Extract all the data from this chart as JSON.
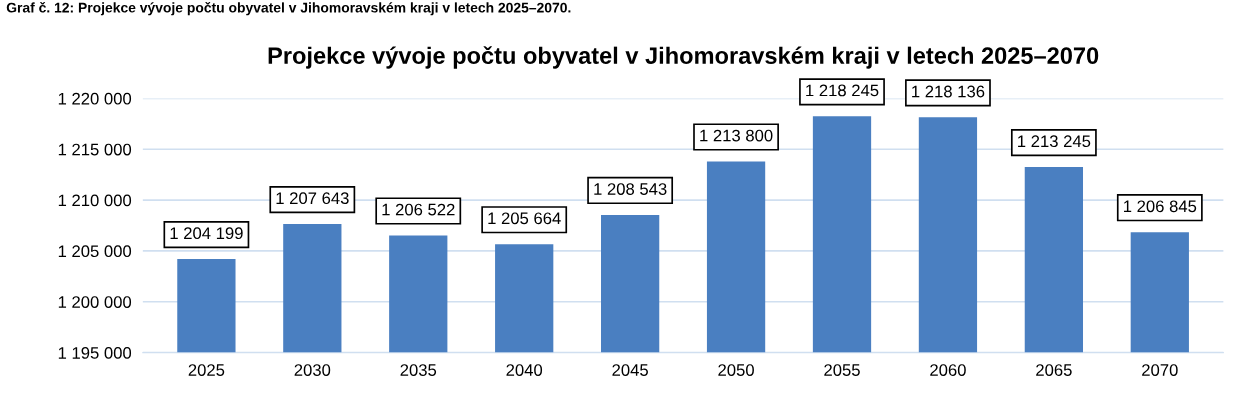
{
  "chart_data": {
    "type": "bar",
    "title": "Projekce vývoje počtu obyvatel v Jihomoravském kraji v letech 2025–2070",
    "annotations": [
      "Graf č. 12: Projekce vývoje počtu obyvatel v Jihomoravském kraji v letech 2025–2070."
    ],
    "categories": [
      "2025",
      "2030",
      "2035",
      "2040",
      "2045",
      "2050",
      "2055",
      "2060",
      "2065",
      "2070"
    ],
    "values": [
      1204199,
      1207643,
      1206522,
      1205664,
      1208543,
      1213800,
      1218245,
      1218136,
      1213245,
      1206845
    ],
    "value_labels": [
      "1 204 199",
      "1 207 643",
      "1 206 522",
      "1 205 664",
      "1 208 543",
      "1 213 800",
      "1 218 245",
      "1 218 136",
      "1 213 245",
      "1 206 845"
    ],
    "color": "#4a7fc1",
    "ylim": [
      1195000,
      1220000
    ],
    "yticks": [
      {
        "value": 1195000,
        "label": "1 195 000"
      },
      {
        "value": 1200000,
        "label": "1 200 000"
      },
      {
        "value": 1205000,
        "label": "1 205 000"
      },
      {
        "value": 1210000,
        "label": "1 210 000"
      },
      {
        "value": 1215000,
        "label": "1 215 000"
      },
      {
        "value": 1220000,
        "label": "1 220 000"
      }
    ],
    "grid": "y"
  }
}
